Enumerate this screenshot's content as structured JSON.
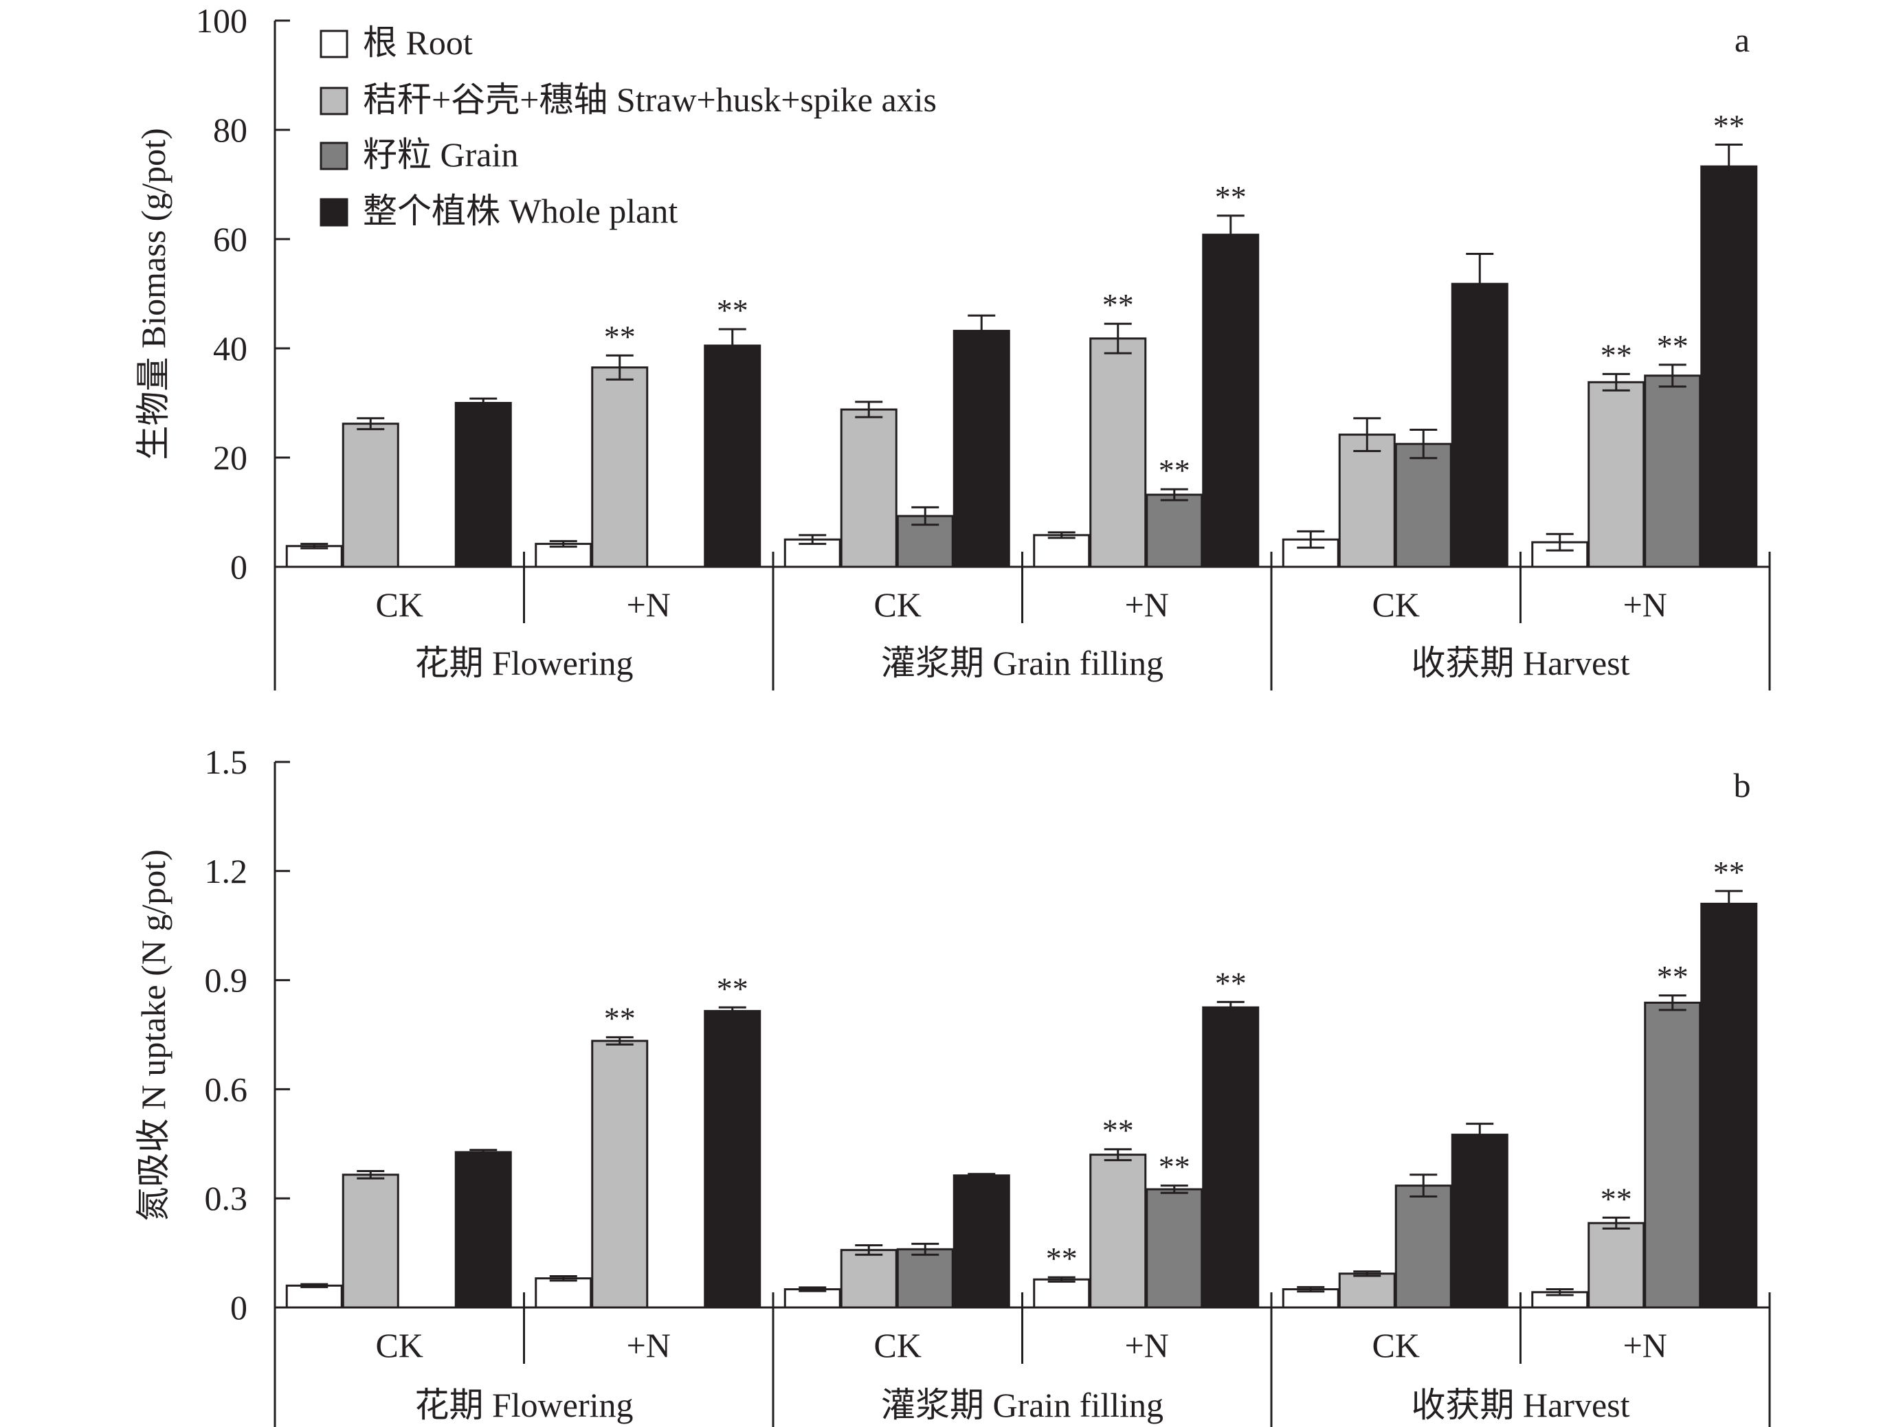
{
  "chart_data": [
    {
      "type": "bar",
      "panel": "a",
      "ylabel": "生物量 Biomass (g/pot)",
      "ylim": [
        0,
        100
      ],
      "yticks": [
        "0",
        "20",
        "40",
        "60",
        "80",
        "100"
      ],
      "ytick_values": [
        0,
        20,
        40,
        60,
        80,
        100
      ],
      "treatments": [
        "CK",
        "+N",
        "CK",
        "+N",
        "CK",
        "+N"
      ],
      "stages": [
        "花期 Flowering",
        "灌浆期 Grain filling",
        "收获期 Harvest"
      ],
      "series": [
        {
          "name": "根 Root",
          "color": "#ffffff",
          "values": [
            3.8,
            4.2,
            5.0,
            5.8,
            5.0,
            4.5
          ],
          "errors": [
            0.4,
            0.5,
            0.8,
            0.5,
            1.5,
            1.5
          ],
          "sig": [
            "",
            "",
            "",
            "",
            "",
            ""
          ]
        },
        {
          "name": "秸秆+谷壳+穗轴 Straw+husk+spike axis",
          "color": "#bcbcbc",
          "values": [
            26.2,
            36.5,
            28.8,
            41.8,
            24.2,
            33.8
          ],
          "errors": [
            1.0,
            2.2,
            1.4,
            2.7,
            3.0,
            1.5
          ],
          "sig": [
            "",
            "**",
            "",
            "**",
            "",
            "**"
          ]
        },
        {
          "name": "籽粒 Grain",
          "color": "#7f7f7f",
          "values": [
            null,
            null,
            9.3,
            13.2,
            22.5,
            35.0
          ],
          "errors": [
            null,
            null,
            1.6,
            1.0,
            2.6,
            2.0
          ],
          "sig": [
            "",
            "",
            "",
            "**",
            "",
            "**"
          ]
        },
        {
          "name": "整个植株 Whole plant",
          "color": "#231f20",
          "values": [
            30.0,
            40.5,
            43.2,
            60.8,
            51.8,
            73.3
          ],
          "errors": [
            0.8,
            3.0,
            2.8,
            3.5,
            5.5,
            4.0
          ],
          "sig": [
            "",
            "**",
            "",
            "**",
            "",
            "**"
          ]
        }
      ]
    },
    {
      "type": "bar",
      "panel": "b",
      "ylabel": "氮吸收 N uptake (N g/pot)",
      "ylim": [
        0,
        1.5
      ],
      "yticks": [
        "0",
        "0.3",
        "0.6",
        "0.9",
        "1.2",
        "1.5"
      ],
      "ytick_values": [
        0,
        0.3,
        0.6,
        0.9,
        1.2,
        1.5
      ],
      "treatments": [
        "CK",
        "+N",
        "CK",
        "+N",
        "CK",
        "+N"
      ],
      "stages": [
        "花期 Flowering",
        "灌浆期 Grain filling",
        "收获期 Harvest"
      ],
      "series": [
        {
          "name": "根 Root",
          "color": "#ffffff",
          "values": [
            0.06,
            0.08,
            0.05,
            0.077,
            0.05,
            0.042
          ],
          "errors": [
            0.004,
            0.006,
            0.005,
            0.006,
            0.006,
            0.008
          ],
          "sig": [
            "",
            "",
            "",
            "**",
            "",
            ""
          ]
        },
        {
          "name": "秸秆+谷壳+穗轴 Straw+husk+spike axis",
          "color": "#bcbcbc",
          "values": [
            0.365,
            0.733,
            0.158,
            0.42,
            0.093,
            0.232
          ],
          "errors": [
            0.01,
            0.01,
            0.013,
            0.015,
            0.006,
            0.015
          ],
          "sig": [
            "",
            "**",
            "",
            "**",
            "",
            "**"
          ]
        },
        {
          "name": "籽粒 Grain",
          "color": "#7f7f7f",
          "values": [
            null,
            null,
            0.16,
            0.325,
            0.335,
            0.838
          ],
          "errors": [
            null,
            null,
            0.015,
            0.01,
            0.03,
            0.02
          ],
          "sig": [
            "",
            "",
            "",
            "**",
            "",
            "**"
          ]
        },
        {
          "name": "整个植株 Whole plant",
          "color": "#231f20",
          "values": [
            0.427,
            0.815,
            0.363,
            0.825,
            0.475,
            1.11
          ],
          "errors": [
            0.006,
            0.01,
            0.004,
            0.015,
            0.03,
            0.035
          ],
          "sig": [
            "",
            "**",
            "",
            "**",
            "",
            "**"
          ]
        }
      ]
    }
  ]
}
